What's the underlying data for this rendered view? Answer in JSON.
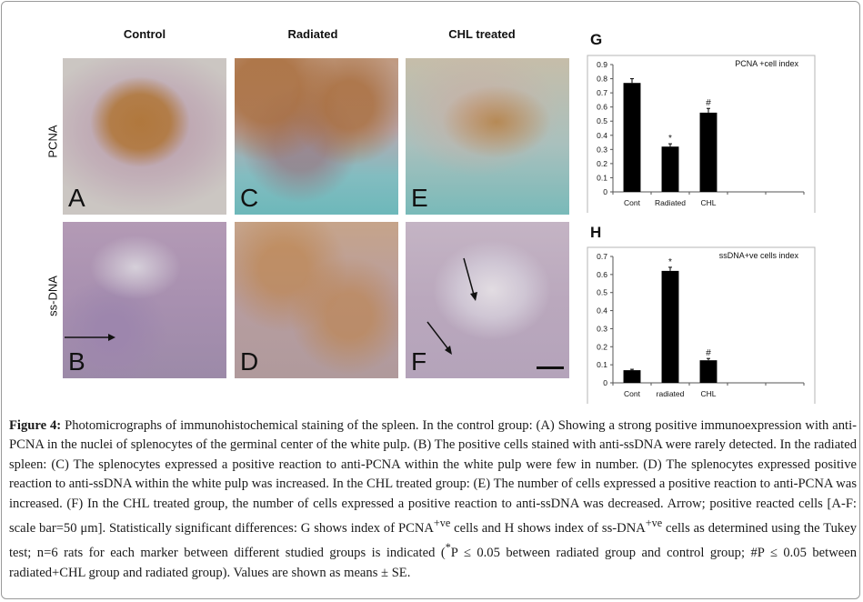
{
  "columns": [
    "Control",
    "Radiated",
    "CHL treated"
  ],
  "rows": [
    "PCNA",
    "ss-DNA"
  ],
  "panels": [
    "A",
    "C",
    "E",
    "B",
    "D",
    "F"
  ],
  "charts": {
    "g_letter": "G",
    "h_letter": "H"
  },
  "chart_data": [
    {
      "type": "bar",
      "title": "PCNA +cell index",
      "categories": [
        "Cont",
        "Radiated",
        "CHL"
      ],
      "values": [
        0.77,
        0.32,
        0.56
      ],
      "errors": [
        0.03,
        0.02,
        0.03
      ],
      "annotations": [
        "",
        "*",
        "#"
      ],
      "yticks": [
        "0",
        "0.1",
        "0.2",
        "0.3",
        "0.4",
        "0.5",
        "0.6",
        "0.7",
        "0.8",
        "0.9"
      ],
      "ylim": [
        0,
        0.9
      ],
      "bar_color": "#000000"
    },
    {
      "type": "bar",
      "title": "ssDNA+ve cells index",
      "categories": [
        "Cont",
        "radiated",
        "CHL"
      ],
      "values": [
        0.07,
        0.62,
        0.125
      ],
      "errors": [
        0.005,
        0.02,
        0.01
      ],
      "annotations": [
        "",
        "*",
        "#"
      ],
      "yticks": [
        "0",
        "0.1",
        "0.2",
        "0.3",
        "0.4",
        "0.5",
        "0.6",
        "0.7"
      ],
      "ylim": [
        0,
        0.7
      ],
      "bar_color": "#000000"
    }
  ],
  "caption": {
    "label": "Figure 4:",
    "p1": "Photomicrographs of immunohistochemical staining of the spleen. In the control group: (A) Showing a strong positive immunoexpression with anti-PCNA in the nuclei of splenocytes of the germinal center of the white pulp. (B) The positive cells stained with anti-ssDNA were rarely detected. In the radiated spleen: (C) The splenocytes expressed a positive reaction to anti-PCNA within the white pulp were few in number. (D) The splenocytes expressed positive reaction to anti-ssDNA within the white pulp was increased. In the CHL treated group: (E) The number of cells expressed a positive reaction to anti-PCNA was increased. (F) In the CHL treated group, the number of cells expressed a positive reaction to anti-ssDNA was decreased. Arrow; positive reacted cells [A-F: scale bar=50 μm]. Statistically significant differences: G shows index of PCNA",
    "sup1": "+ve",
    "p2": " cells and H shows index of ss-DNA",
    "sup2": "+ve",
    "p3": " cells as determined using the Tukey test; n=6 rats for each marker between different studied groups is indicated (",
    "sup3": "*",
    "p4": "P ≤ 0.05 between radiated group and control group; #P ≤ 0.05 between radiated+CHL group and radiated group). Values are shown as means ± SE."
  }
}
